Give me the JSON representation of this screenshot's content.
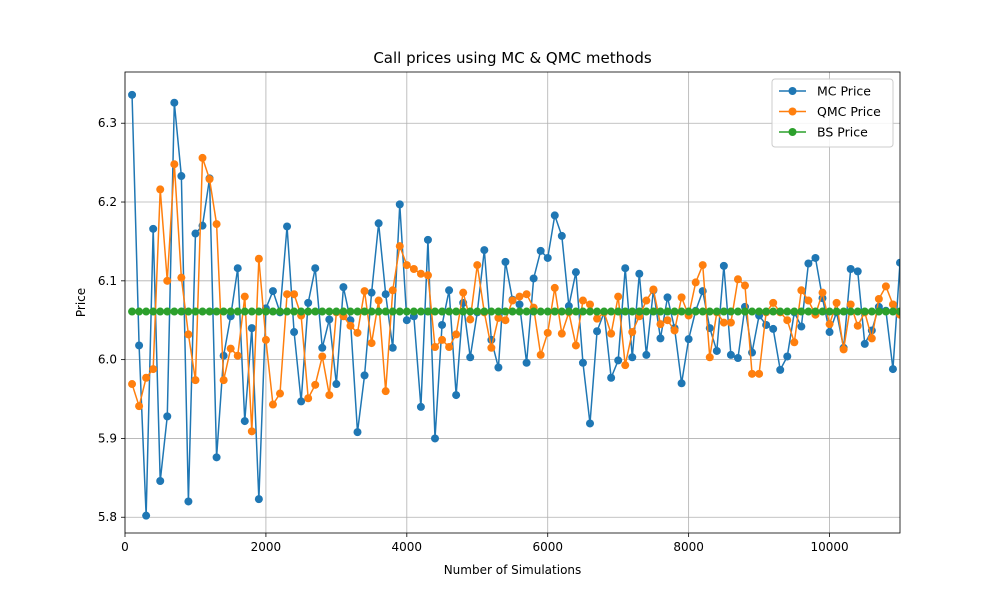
{
  "chart_data": {
    "type": "line",
    "title": "Call prices using MC & QMC methods",
    "xlabel": "Number of Simulations",
    "ylabel": "Price",
    "xlim": [
      0,
      11000
    ],
    "ylim": [
      5.78,
      6.365
    ],
    "x_ticks": [
      0,
      2000,
      4000,
      6000,
      8000,
      10000
    ],
    "y_ticks": [
      5.8,
      5.9,
      6.0,
      6.1,
      6.2,
      6.3
    ],
    "grid": true,
    "legend_position": "top-right",
    "x_start": 100,
    "x_step": 100,
    "series": [
      {
        "name": "MC Price",
        "color": "#1f77b4",
        "marker": "circle",
        "values": [
          6.336,
          6.018,
          5.802,
          6.166,
          5.846,
          5.928,
          6.326,
          6.233,
          5.82,
          6.16,
          6.17,
          6.23,
          5.876,
          6.005,
          6.055,
          6.116,
          5.922,
          6.04,
          5.823,
          6.065,
          6.087,
          6.06,
          6.169,
          6.035,
          5.947,
          6.072,
          6.116,
          6.015,
          6.051,
          5.969,
          6.092,
          6.05,
          5.908,
          5.98,
          6.085,
          6.173,
          6.083,
          6.015,
          6.197,
          6.05,
          6.055,
          5.94,
          6.152,
          5.9,
          6.044,
          6.088,
          5.955,
          6.072,
          6.003,
          6.06,
          6.139,
          6.025,
          5.99,
          6.124,
          6.076,
          6.07,
          5.996,
          6.103,
          6.138,
          6.129,
          6.183,
          6.157,
          6.068,
          6.111,
          5.996,
          5.919,
          6.036,
          6.06,
          5.977,
          5.999,
          6.116,
          6.003,
          6.109,
          6.006,
          6.088,
          6.027,
          6.079,
          6.04,
          5.97,
          6.026,
          6.062,
          6.087,
          6.04,
          6.011,
          6.119,
          6.006,
          6.002,
          6.067,
          6.009,
          6.056,
          6.044,
          6.039,
          5.987,
          6.004,
          6.06,
          6.042,
          6.122,
          6.129,
          6.078,
          6.035,
          6.06,
          6.015,
          6.115,
          6.112,
          6.02,
          6.037,
          6.067,
          6.062,
          5.988,
          6.123
        ]
      },
      {
        "name": "QMC Price",
        "color": "#ff7f0e",
        "marker": "circle",
        "values": [
          5.969,
          5.941,
          5.977,
          5.988,
          6.216,
          6.1,
          6.248,
          6.104,
          6.032,
          5.974,
          6.256,
          6.229,
          6.172,
          5.974,
          6.014,
          6.005,
          6.08,
          5.909,
          6.128,
          6.025,
          5.943,
          5.957,
          6.083,
          6.083,
          6.056,
          5.951,
          5.968,
          6.004,
          5.955,
          6.06,
          6.055,
          6.043,
          6.034,
          6.087,
          6.021,
          6.075,
          5.96,
          6.088,
          6.144,
          6.12,
          6.115,
          6.109,
          6.107,
          6.016,
          6.025,
          6.016,
          6.032,
          6.085,
          6.051,
          6.12,
          6.06,
          6.015,
          6.053,
          6.05,
          6.075,
          6.08,
          6.083,
          6.066,
          6.006,
          6.034,
          6.091,
          6.033,
          6.06,
          6.018,
          6.075,
          6.07,
          6.052,
          6.06,
          6.033,
          6.08,
          5.993,
          6.035,
          6.055,
          6.075,
          6.089,
          6.045,
          6.05,
          6.037,
          6.079,
          6.056,
          6.098,
          6.12,
          6.003,
          6.06,
          6.047,
          6.047,
          6.102,
          6.094,
          5.982,
          5.982,
          6.06,
          6.072,
          6.06,
          6.05,
          6.022,
          6.088,
          6.075,
          6.057,
          6.085,
          6.045,
          6.072,
          6.013,
          6.07,
          6.043,
          6.06,
          6.027,
          6.077,
          6.093,
          6.07,
          6.057
        ]
      },
      {
        "name": "BS Price",
        "color": "#2ca02c",
        "marker": "circle",
        "constant": 6.061
      }
    ]
  }
}
